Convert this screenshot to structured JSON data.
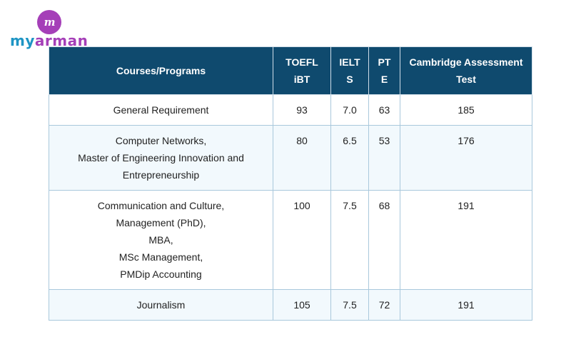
{
  "logo": {
    "mark": "m",
    "word_part1": "my",
    "word_part2": "arman"
  },
  "table": {
    "headers": {
      "course": [
        "Courses/Programs"
      ],
      "toefl": [
        "TOEFL",
        "iBT"
      ],
      "ielts": [
        "IELT",
        "S"
      ],
      "pte": [
        "PT",
        "E"
      ],
      "cambridge": [
        "Cambridge Assessment",
        "Test"
      ]
    },
    "rows": [
      {
        "course_lines": [
          "General Requirement"
        ],
        "toefl": "93",
        "ielts": "7.0",
        "pte": "63",
        "cambridge": "185"
      },
      {
        "course_lines": [
          "Computer Networks,",
          "Master of Engineering Innovation and",
          "Entrepreneurship"
        ],
        "toefl": "80",
        "ielts": "6.5",
        "pte": "53",
        "cambridge": "176"
      },
      {
        "course_lines": [
          "Communication and Culture,",
          "Management (PhD),",
          "MBA,",
          "MSc Management,",
          "PMDip Accounting"
        ],
        "toefl": "100",
        "ielts": "7.5",
        "pte": "68",
        "cambridge": "191"
      },
      {
        "course_lines": [
          "Journalism"
        ],
        "toefl": "105",
        "ielts": "7.5",
        "pte": "72",
        "cambridge": "191"
      }
    ]
  }
}
